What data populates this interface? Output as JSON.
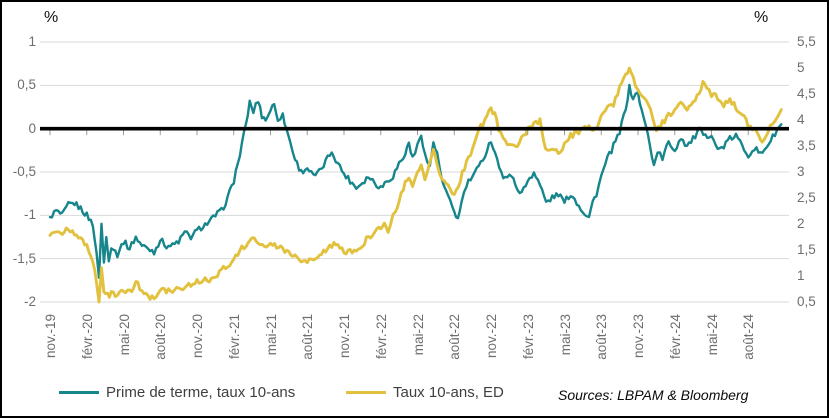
{
  "source_note": "Sources: LBPAM & Bloomberg",
  "chart_data": {
    "type": "line",
    "title": "",
    "x_unit": "months from nov. 2019 (0 = nov.-19)",
    "x_range": [
      0,
      60
    ],
    "grid": true,
    "gridline_color": "#d9d9d9",
    "zero_line_color": "#000000",
    "tick_color": "#9a9a9a",
    "legend_position": "bottom",
    "left_axis": {
      "title": "%",
      "ylim": [
        -2,
        1
      ],
      "tick_labels": [
        "1",
        "0,5",
        "0",
        "-0,5",
        "-1",
        "-1,5",
        "-2"
      ],
      "tick_values": [
        1,
        0.5,
        0,
        -0.5,
        -1,
        -1.5,
        -2
      ]
    },
    "right_axis": {
      "title": "%",
      "ylim": [
        0.5,
        5.5
      ],
      "tick_labels": [
        "5,5",
        "5",
        "4,5",
        "4",
        "3,5",
        "3",
        "2,5",
        "2",
        "1,5",
        "1",
        "0,5"
      ],
      "tick_values": [
        5.5,
        5,
        4.5,
        4,
        3.5,
        3,
        2.5,
        2,
        1.5,
        1,
        0.5
      ]
    },
    "x_tick_interval_months": 3,
    "x_tick_labels": [
      "nov.-19",
      "févr.-20",
      "mai-20",
      "août-20",
      "nov.-20",
      "févr.-21",
      "mai-21",
      "août-21",
      "nov.-21",
      "févr.-22",
      "mai-22",
      "août-22",
      "nov.-22",
      "févr.-23",
      "mai-23",
      "août-23",
      "nov.-23",
      "févr.-24",
      "mai-24",
      "août-24"
    ],
    "series": [
      {
        "name": "Prime de terme, taux 10-ans",
        "axis": "left",
        "color": "#16858C",
        "points": [
          [
            0,
            -1.02
          ],
          [
            0.5,
            -0.95
          ],
          [
            1,
            -1.0
          ],
          [
            1.5,
            -0.88
          ],
          [
            2,
            -0.86
          ],
          [
            2.5,
            -0.92
          ],
          [
            3,
            -1.0
          ],
          [
            3.5,
            -1.1
          ],
          [
            3.8,
            -1.45
          ],
          [
            4,
            -1.7
          ],
          [
            4.2,
            -1.1
          ],
          [
            4.4,
            -1.55
          ],
          [
            4.6,
            -1.25
          ],
          [
            4.8,
            -1.5
          ],
          [
            5,
            -1.35
          ],
          [
            5.5,
            -1.45
          ],
          [
            6,
            -1.3
          ],
          [
            6.5,
            -1.38
          ],
          [
            7,
            -1.25
          ],
          [
            7.5,
            -1.35
          ],
          [
            8,
            -1.38
          ],
          [
            8.5,
            -1.42
          ],
          [
            9,
            -1.28
          ],
          [
            9.5,
            -1.35
          ],
          [
            10,
            -1.35
          ],
          [
            10.5,
            -1.3
          ],
          [
            11,
            -1.2
          ],
          [
            11.5,
            -1.25
          ],
          [
            12,
            -1.18
          ],
          [
            12.5,
            -1.12
          ],
          [
            13,
            -1.08
          ],
          [
            13.5,
            -1.0
          ],
          [
            14,
            -0.95
          ],
          [
            14.5,
            -0.8
          ],
          [
            15,
            -0.6
          ],
          [
            15.5,
            -0.3
          ],
          [
            16,
            0.05
          ],
          [
            16.3,
            0.3
          ],
          [
            16.6,
            0.2
          ],
          [
            17,
            0.33
          ],
          [
            17.3,
            0.15
          ],
          [
            17.6,
            0.1
          ],
          [
            18,
            0.22
          ],
          [
            18.3,
            0.28
          ],
          [
            18.6,
            0.12
          ],
          [
            19,
            0.15
          ],
          [
            19.3,
            0.0
          ],
          [
            19.6,
            -0.15
          ],
          [
            20,
            -0.35
          ],
          [
            20.5,
            -0.5
          ],
          [
            21,
            -0.45
          ],
          [
            21.5,
            -0.55
          ],
          [
            22,
            -0.5
          ],
          [
            22.5,
            -0.38
          ],
          [
            23,
            -0.26
          ],
          [
            23.5,
            -0.4
          ],
          [
            24,
            -0.52
          ],
          [
            24.5,
            -0.6
          ],
          [
            25,
            -0.68
          ],
          [
            25.5,
            -0.62
          ],
          [
            26,
            -0.55
          ],
          [
            26.5,
            -0.62
          ],
          [
            27,
            -0.68
          ],
          [
            27.5,
            -0.6
          ],
          [
            28,
            -0.55
          ],
          [
            28.5,
            -0.4
          ],
          [
            29,
            -0.3
          ],
          [
            29.3,
            -0.15
          ],
          [
            29.6,
            -0.35
          ],
          [
            30,
            -0.2
          ],
          [
            30.3,
            -0.05
          ],
          [
            30.6,
            -0.3
          ],
          [
            31,
            -0.45
          ],
          [
            31.3,
            -0.15
          ],
          [
            31.6,
            -0.3
          ],
          [
            32,
            -0.6
          ],
          [
            32.5,
            -0.8
          ],
          [
            33,
            -0.95
          ],
          [
            33.3,
            -1.05
          ],
          [
            33.6,
            -0.85
          ],
          [
            34,
            -0.65
          ],
          [
            34.5,
            -0.55
          ],
          [
            35,
            -0.45
          ],
          [
            35.5,
            -0.3
          ],
          [
            36,
            -0.13
          ],
          [
            36.5,
            -0.35
          ],
          [
            37,
            -0.6
          ],
          [
            37.5,
            -0.5
          ],
          [
            38,
            -0.65
          ],
          [
            38.5,
            -0.75
          ],
          [
            39,
            -0.6
          ],
          [
            39.5,
            -0.5
          ],
          [
            40,
            -0.65
          ],
          [
            40.5,
            -0.85
          ],
          [
            41,
            -0.8
          ],
          [
            41.5,
            -0.75
          ],
          [
            42,
            -0.85
          ],
          [
            42.5,
            -0.75
          ],
          [
            43,
            -0.85
          ],
          [
            43.5,
            -0.95
          ],
          [
            44,
            -1.02
          ],
          [
            44.3,
            -0.85
          ],
          [
            44.6,
            -0.75
          ],
          [
            45,
            -0.55
          ],
          [
            45.5,
            -0.35
          ],
          [
            46,
            -0.2
          ],
          [
            46.5,
            -0.05
          ],
          [
            47,
            0.25
          ],
          [
            47.3,
            0.47
          ],
          [
            47.6,
            0.35
          ],
          [
            48,
            0.42
          ],
          [
            48.3,
            0.2
          ],
          [
            48.6,
            0.05
          ],
          [
            49,
            -0.2
          ],
          [
            49.3,
            -0.43
          ],
          [
            49.6,
            -0.25
          ],
          [
            50,
            -0.35
          ],
          [
            50.5,
            -0.15
          ],
          [
            51,
            -0.25
          ],
          [
            51.5,
            -0.1
          ],
          [
            52,
            -0.2
          ],
          [
            52.5,
            -0.12
          ],
          [
            53,
            -0.02
          ],
          [
            53.5,
            -0.1
          ],
          [
            54,
            -0.05
          ],
          [
            54.5,
            -0.25
          ],
          [
            55,
            -0.2
          ],
          [
            55.5,
            -0.12
          ],
          [
            56,
            -0.08
          ],
          [
            56.5,
            -0.2
          ],
          [
            57,
            -0.3
          ],
          [
            57.5,
            -0.22
          ],
          [
            58,
            -0.3
          ],
          [
            58.5,
            -0.2
          ],
          [
            59,
            -0.1
          ],
          [
            59.7,
            0.05
          ]
        ]
      },
      {
        "name": "Taux 10-ans, ED",
        "axis": "right",
        "color": "#E1C13E",
        "points": [
          [
            0,
            1.78
          ],
          [
            0.5,
            1.85
          ],
          [
            1,
            1.8
          ],
          [
            1.5,
            1.9
          ],
          [
            2,
            1.82
          ],
          [
            2.5,
            1.7
          ],
          [
            3,
            1.55
          ],
          [
            3.5,
            1.3
          ],
          [
            3.8,
            0.9
          ],
          [
            4,
            0.55
          ],
          [
            4.2,
            1.1
          ],
          [
            4.4,
            0.7
          ],
          [
            4.7,
            0.62
          ],
          [
            5,
            0.65
          ],
          [
            5.5,
            0.62
          ],
          [
            6,
            0.7
          ],
          [
            6.5,
            0.68
          ],
          [
            7,
            0.9
          ],
          [
            7.5,
            0.72
          ],
          [
            8,
            0.62
          ],
          [
            8.5,
            0.55
          ],
          [
            9,
            0.7
          ],
          [
            9.5,
            0.72
          ],
          [
            10,
            0.68
          ],
          [
            10.5,
            0.75
          ],
          [
            11,
            0.8
          ],
          [
            11.5,
            0.85
          ],
          [
            12,
            0.88
          ],
          [
            12.5,
            0.92
          ],
          [
            13,
            0.92
          ],
          [
            13.5,
            1.0
          ],
          [
            14,
            1.1
          ],
          [
            14.5,
            1.2
          ],
          [
            15,
            1.3
          ],
          [
            15.5,
            1.5
          ],
          [
            16,
            1.6
          ],
          [
            16.5,
            1.72
          ],
          [
            17,
            1.65
          ],
          [
            17.5,
            1.6
          ],
          [
            18,
            1.62
          ],
          [
            18.5,
            1.58
          ],
          [
            19,
            1.5
          ],
          [
            19.5,
            1.45
          ],
          [
            20,
            1.35
          ],
          [
            20.5,
            1.25
          ],
          [
            21,
            1.3
          ],
          [
            21.5,
            1.28
          ],
          [
            22,
            1.35
          ],
          [
            22.5,
            1.5
          ],
          [
            23,
            1.6
          ],
          [
            23.5,
            1.58
          ],
          [
            24,
            1.45
          ],
          [
            24.5,
            1.5
          ],
          [
            25,
            1.45
          ],
          [
            25.5,
            1.6
          ],
          [
            26,
            1.75
          ],
          [
            26.5,
            1.85
          ],
          [
            27,
            1.95
          ],
          [
            27.3,
            2.05
          ],
          [
            27.6,
            1.85
          ],
          [
            28,
            2.15
          ],
          [
            28.5,
            2.45
          ],
          [
            29,
            2.8
          ],
          [
            29.3,
            2.9
          ],
          [
            29.6,
            2.75
          ],
          [
            30,
            3.0
          ],
          [
            30.3,
            3.1
          ],
          [
            30.6,
            2.85
          ],
          [
            31,
            3.25
          ],
          [
            31.3,
            3.45
          ],
          [
            31.6,
            3.1
          ],
          [
            32,
            2.9
          ],
          [
            32.5,
            2.7
          ],
          [
            33,
            2.6
          ],
          [
            33.5,
            2.85
          ],
          [
            34,
            3.2
          ],
          [
            34.5,
            3.45
          ],
          [
            35,
            3.8
          ],
          [
            35.5,
            4.0
          ],
          [
            36,
            4.22
          ],
          [
            36.3,
            4.1
          ],
          [
            36.6,
            3.85
          ],
          [
            37,
            3.6
          ],
          [
            37.5,
            3.5
          ],
          [
            38,
            3.45
          ],
          [
            38.5,
            3.65
          ],
          [
            39,
            3.8
          ],
          [
            39.5,
            3.95
          ],
          [
            40,
            4.0
          ],
          [
            40.3,
            3.55
          ],
          [
            40.6,
            3.4
          ],
          [
            41,
            3.45
          ],
          [
            41.5,
            3.35
          ],
          [
            42,
            3.55
          ],
          [
            42.5,
            3.7
          ],
          [
            43,
            3.75
          ],
          [
            43.5,
            3.85
          ],
          [
            44,
            3.9
          ],
          [
            44.5,
            3.8
          ],
          [
            45,
            4.1
          ],
          [
            45.5,
            4.3
          ],
          [
            46,
            4.3
          ],
          [
            46.5,
            4.6
          ],
          [
            47,
            4.85
          ],
          [
            47.3,
            5.0
          ],
          [
            47.6,
            4.8
          ],
          [
            48,
            4.6
          ],
          [
            48.5,
            4.4
          ],
          [
            49,
            4.2
          ],
          [
            49.5,
            3.85
          ],
          [
            50,
            3.95
          ],
          [
            50.5,
            4.1
          ],
          [
            51,
            4.2
          ],
          [
            51.5,
            4.3
          ],
          [
            52,
            4.2
          ],
          [
            52.5,
            4.35
          ],
          [
            53,
            4.5
          ],
          [
            53.3,
            4.7
          ],
          [
            53.6,
            4.6
          ],
          [
            54,
            4.5
          ],
          [
            54.5,
            4.45
          ],
          [
            55,
            4.3
          ],
          [
            55.5,
            4.4
          ],
          [
            56,
            4.25
          ],
          [
            56.5,
            4.1
          ],
          [
            57,
            3.9
          ],
          [
            57.5,
            3.8
          ],
          [
            58,
            3.65
          ],
          [
            58.3,
            3.6
          ],
          [
            58.6,
            3.75
          ],
          [
            59,
            3.95
          ],
          [
            59.7,
            4.2
          ]
        ]
      }
    ]
  }
}
